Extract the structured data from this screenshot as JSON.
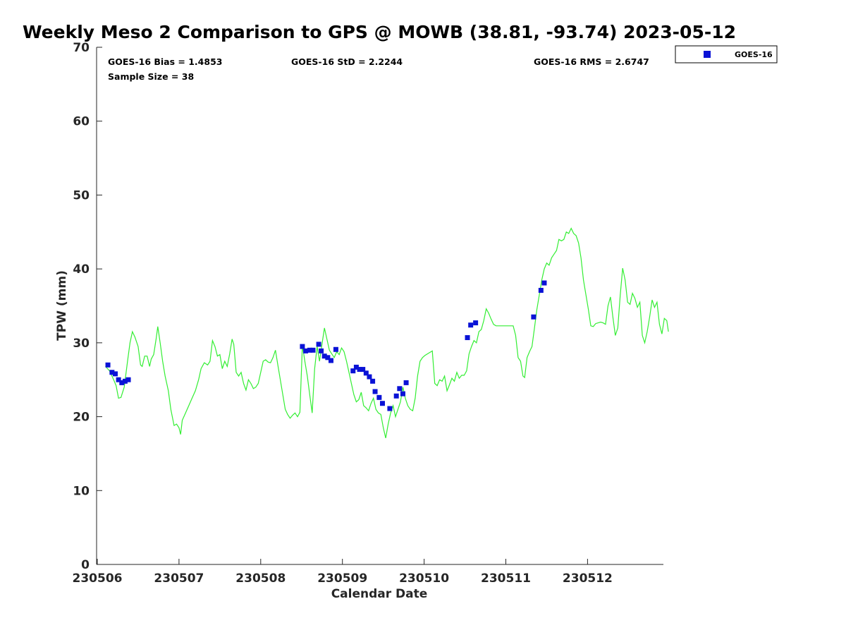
{
  "chart_data": {
    "type": "scatter",
    "title": "Weekly Meso 2 Comparison to GPS @ MOWB (38.81, -93.74) 2023-05-12",
    "xlabel": "Calendar Date",
    "ylabel": "TPW (mm)",
    "xlim": [
      0,
      6.95
    ],
    "ylim": [
      0,
      70
    ],
    "x_ticks": [
      {
        "value": 0,
        "label": "230506"
      },
      {
        "value": 1,
        "label": "230507"
      },
      {
        "value": 2,
        "label": "230508"
      },
      {
        "value": 3,
        "label": "230509"
      },
      {
        "value": 4,
        "label": "230510"
      },
      {
        "value": 5,
        "label": "230511"
      },
      {
        "value": 6,
        "label": "230512"
      }
    ],
    "y_ticks": [
      {
        "value": 0,
        "label": "0"
      },
      {
        "value": 10,
        "label": "10"
      },
      {
        "value": 20,
        "label": "20"
      },
      {
        "value": 30,
        "label": "30"
      },
      {
        "value": 40,
        "label": "40"
      },
      {
        "value": 50,
        "label": "50"
      },
      {
        "value": 60,
        "label": "60"
      },
      {
        "value": 70,
        "label": "70"
      }
    ],
    "stats": {
      "bias": "GOES-16 Bias = 1.4853",
      "std": "GOES-16 StD = 2.2244",
      "rms": "GOES-16 RMS = 2.6747",
      "sample": "Sample Size = 38"
    },
    "legend": {
      "position": "outside-top-right",
      "entries": [
        "GOES-16"
      ]
    },
    "grid": false,
    "series": [
      {
        "name": "GOES-16",
        "kind": "scatter",
        "marker": "square",
        "color": "#0a12d6",
        "points": [
          [
            0.13,
            27.0
          ],
          [
            0.18,
            26.0
          ],
          [
            0.22,
            25.8
          ],
          [
            0.26,
            25.0
          ],
          [
            0.3,
            24.6
          ],
          [
            0.34,
            24.8
          ],
          [
            0.38,
            25.0
          ],
          [
            2.51,
            29.5
          ],
          [
            2.55,
            28.9
          ],
          [
            2.6,
            29.0
          ],
          [
            2.64,
            29.0
          ],
          [
            2.71,
            29.8
          ],
          [
            2.74,
            28.9
          ],
          [
            2.78,
            28.2
          ],
          [
            2.82,
            28.0
          ],
          [
            2.86,
            27.6
          ],
          [
            2.92,
            29.1
          ],
          [
            3.13,
            26.2
          ],
          [
            3.17,
            26.7
          ],
          [
            3.21,
            26.4
          ],
          [
            3.25,
            26.4
          ],
          [
            3.29,
            25.9
          ],
          [
            3.33,
            25.4
          ],
          [
            3.37,
            24.8
          ],
          [
            3.4,
            23.4
          ],
          [
            3.45,
            22.6
          ],
          [
            3.49,
            21.8
          ],
          [
            3.58,
            21.1
          ],
          [
            3.66,
            22.8
          ],
          [
            3.7,
            23.8
          ],
          [
            3.74,
            23.1
          ],
          [
            3.78,
            24.6
          ],
          [
            4.53,
            30.7
          ],
          [
            4.57,
            32.4
          ],
          [
            4.63,
            32.7
          ],
          [
            5.34,
            33.5
          ],
          [
            5.43,
            37.1
          ],
          [
            5.47,
            38.1
          ]
        ]
      },
      {
        "name": "GPS",
        "kind": "line",
        "color": "#33ee33",
        "points": [
          [
            0.1,
            26.8
          ],
          [
            0.15,
            26.2
          ],
          [
            0.2,
            25.0
          ],
          [
            0.23,
            24.2
          ],
          [
            0.26,
            22.5
          ],
          [
            0.29,
            22.6
          ],
          [
            0.33,
            24.0
          ],
          [
            0.37,
            27.5
          ],
          [
            0.4,
            30.0
          ],
          [
            0.43,
            31.5
          ],
          [
            0.46,
            30.8
          ],
          [
            0.5,
            29.5
          ],
          [
            0.53,
            27.0
          ],
          [
            0.55,
            26.8
          ],
          [
            0.58,
            28.2
          ],
          [
            0.61,
            28.2
          ],
          [
            0.64,
            26.8
          ],
          [
            0.66,
            27.8
          ],
          [
            0.69,
            28.4
          ],
          [
            0.72,
            30.5
          ],
          [
            0.74,
            32.2
          ],
          [
            0.77,
            30.0
          ],
          [
            0.8,
            27.5
          ],
          [
            0.83,
            25.5
          ],
          [
            0.87,
            23.5
          ],
          [
            0.9,
            21.0
          ],
          [
            0.94,
            18.8
          ],
          [
            0.97,
            19.0
          ],
          [
            1.0,
            18.5
          ],
          [
            1.02,
            17.6
          ],
          [
            1.04,
            19.5
          ],
          [
            1.08,
            20.5
          ],
          [
            1.12,
            21.5
          ],
          [
            1.16,
            22.5
          ],
          [
            1.2,
            23.5
          ],
          [
            1.24,
            25.0
          ],
          [
            1.27,
            26.5
          ],
          [
            1.31,
            27.3
          ],
          [
            1.35,
            27.0
          ],
          [
            1.38,
            27.5
          ],
          [
            1.41,
            30.3
          ],
          [
            1.44,
            29.5
          ],
          [
            1.47,
            28.2
          ],
          [
            1.5,
            28.4
          ],
          [
            1.53,
            26.5
          ],
          [
            1.56,
            27.5
          ],
          [
            1.59,
            26.8
          ],
          [
            1.62,
            28.5
          ],
          [
            1.65,
            30.5
          ],
          [
            1.67,
            29.8
          ],
          [
            1.7,
            26.0
          ],
          [
            1.73,
            25.5
          ],
          [
            1.76,
            26.0
          ],
          [
            1.79,
            24.5
          ],
          [
            1.82,
            23.6
          ],
          [
            1.85,
            25.0
          ],
          [
            1.88,
            24.5
          ],
          [
            1.91,
            23.8
          ],
          [
            1.94,
            24.0
          ],
          [
            1.97,
            24.5
          ],
          [
            2.0,
            26.0
          ],
          [
            2.03,
            27.5
          ],
          [
            2.06,
            27.7
          ],
          [
            2.09,
            27.4
          ],
          [
            2.12,
            27.3
          ],
          [
            2.15,
            28.0
          ],
          [
            2.18,
            29.0
          ],
          [
            2.21,
            27.0
          ],
          [
            2.24,
            25.0
          ],
          [
            2.27,
            23.0
          ],
          [
            2.3,
            21.0
          ],
          [
            2.33,
            20.3
          ],
          [
            2.36,
            19.8
          ],
          [
            2.39,
            20.2
          ],
          [
            2.42,
            20.5
          ],
          [
            2.45,
            20.0
          ],
          [
            2.48,
            20.6
          ],
          [
            2.51,
            29.7
          ],
          [
            2.54,
            27.5
          ],
          [
            2.57,
            25.5
          ],
          [
            2.6,
            23.0
          ],
          [
            2.63,
            20.5
          ],
          [
            2.66,
            26.5
          ],
          [
            2.69,
            29.5
          ],
          [
            2.72,
            27.5
          ],
          [
            2.75,
            29.8
          ],
          [
            2.78,
            32.0
          ],
          [
            2.81,
            30.5
          ],
          [
            2.84,
            29.0
          ],
          [
            2.87,
            28.5
          ],
          [
            2.9,
            28.0
          ],
          [
            2.93,
            28.8
          ],
          [
            2.96,
            28.4
          ],
          [
            2.99,
            29.3
          ],
          [
            3.02,
            28.8
          ],
          [
            3.05,
            27.5
          ],
          [
            3.08,
            26.0
          ],
          [
            3.11,
            24.5
          ],
          [
            3.14,
            23.0
          ],
          [
            3.17,
            22.0
          ],
          [
            3.2,
            22.3
          ],
          [
            3.23,
            23.3
          ],
          [
            3.26,
            21.5
          ],
          [
            3.29,
            21.2
          ],
          [
            3.32,
            20.8
          ],
          [
            3.35,
            21.8
          ],
          [
            3.38,
            22.5
          ],
          [
            3.41,
            21.0
          ],
          [
            3.44,
            20.5
          ],
          [
            3.47,
            20.3
          ],
          [
            3.5,
            18.5
          ],
          [
            3.53,
            17.1
          ],
          [
            3.56,
            19.0
          ],
          [
            3.59,
            20.5
          ],
          [
            3.62,
            21.5
          ],
          [
            3.65,
            20.0
          ],
          [
            3.68,
            21.0
          ],
          [
            3.71,
            22.0
          ],
          [
            3.74,
            24.0
          ],
          [
            3.77,
            22.5
          ],
          [
            3.8,
            21.5
          ],
          [
            3.83,
            21.0
          ],
          [
            3.86,
            20.8
          ],
          [
            3.89,
            22.5
          ],
          [
            3.92,
            25.5
          ],
          [
            3.95,
            27.5
          ],
          [
            3.98,
            28.0
          ],
          [
            4.01,
            28.3
          ],
          [
            4.04,
            28.5
          ],
          [
            4.07,
            28.7
          ],
          [
            4.1,
            28.9
          ],
          [
            4.13,
            24.5
          ],
          [
            4.16,
            24.2
          ],
          [
            4.19,
            25.0
          ],
          [
            4.22,
            24.8
          ],
          [
            4.25,
            25.5
          ],
          [
            4.28,
            23.5
          ],
          [
            4.31,
            24.3
          ],
          [
            4.34,
            25.2
          ],
          [
            4.37,
            24.8
          ],
          [
            4.4,
            26.0
          ],
          [
            4.43,
            25.2
          ],
          [
            4.46,
            25.6
          ],
          [
            4.49,
            25.6
          ],
          [
            4.52,
            26.2
          ],
          [
            4.55,
            28.5
          ],
          [
            4.58,
            29.5
          ],
          [
            4.61,
            30.3
          ],
          [
            4.64,
            30.0
          ],
          [
            4.67,
            31.5
          ],
          [
            4.7,
            31.8
          ],
          [
            4.73,
            33.0
          ],
          [
            4.76,
            34.6
          ],
          [
            4.79,
            34.0
          ],
          [
            4.82,
            33.2
          ],
          [
            4.85,
            32.5
          ],
          [
            4.88,
            32.3
          ],
          [
            4.91,
            32.3
          ],
          [
            4.94,
            32.3
          ],
          [
            4.97,
            32.3
          ],
          [
            5.0,
            32.3
          ],
          [
            5.03,
            32.3
          ],
          [
            5.06,
            32.3
          ],
          [
            5.09,
            32.3
          ],
          [
            5.12,
            31.0
          ],
          [
            5.15,
            28.0
          ],
          [
            5.18,
            27.5
          ],
          [
            5.21,
            25.5
          ],
          [
            5.23,
            25.3
          ],
          [
            5.26,
            28.0
          ],
          [
            5.29,
            28.8
          ],
          [
            5.32,
            29.5
          ],
          [
            5.35,
            32.0
          ],
          [
            5.38,
            34.5
          ],
          [
            5.41,
            36.5
          ],
          [
            5.44,
            38.5
          ],
          [
            5.47,
            40.0
          ],
          [
            5.5,
            40.8
          ],
          [
            5.53,
            40.5
          ],
          [
            5.56,
            41.5
          ],
          [
            5.59,
            42.0
          ],
          [
            5.62,
            42.5
          ],
          [
            5.65,
            44.0
          ],
          [
            5.68,
            43.8
          ],
          [
            5.71,
            44.0
          ],
          [
            5.74,
            45.0
          ],
          [
            5.77,
            44.8
          ],
          [
            5.8,
            45.5
          ],
          [
            5.83,
            44.8
          ],
          [
            5.86,
            44.5
          ],
          [
            5.89,
            43.5
          ],
          [
            5.92,
            41.5
          ],
          [
            5.95,
            38.5
          ],
          [
            5.98,
            36.5
          ],
          [
            6.01,
            34.5
          ],
          [
            6.04,
            32.3
          ],
          [
            6.07,
            32.2
          ],
          [
            6.1,
            32.6
          ],
          [
            6.13,
            32.7
          ],
          [
            6.16,
            32.8
          ],
          [
            6.19,
            32.7
          ],
          [
            6.22,
            32.5
          ],
          [
            6.25,
            35.0
          ],
          [
            6.28,
            36.2
          ],
          [
            6.31,
            33.5
          ],
          [
            6.34,
            31.0
          ],
          [
            6.37,
            32.0
          ],
          [
            6.4,
            36.5
          ],
          [
            6.43,
            40.1
          ],
          [
            6.46,
            38.5
          ],
          [
            6.49,
            35.5
          ],
          [
            6.52,
            35.2
          ],
          [
            6.55,
            36.7
          ],
          [
            6.58,
            36.0
          ],
          [
            6.61,
            34.8
          ],
          [
            6.64,
            35.5
          ],
          [
            6.67,
            31.0
          ],
          [
            6.7,
            30.0
          ],
          [
            6.73,
            31.5
          ],
          [
            6.76,
            33.5
          ],
          [
            6.79,
            35.8
          ],
          [
            6.82,
            34.8
          ],
          [
            6.85,
            35.5
          ],
          [
            6.88,
            32.5
          ],
          [
            6.91,
            31.2
          ],
          [
            6.94,
            33.3
          ],
          [
            6.97,
            33.0
          ],
          [
            6.99,
            31.5
          ]
        ]
      }
    ]
  }
}
